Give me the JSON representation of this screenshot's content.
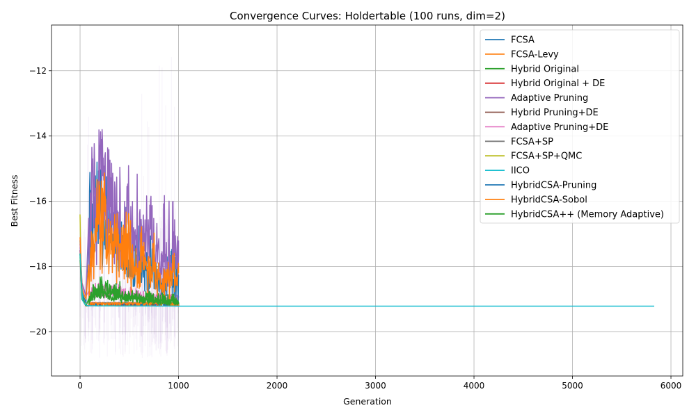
{
  "chart_data": {
    "type": "line",
    "title": "Convergence Curves: Holdertable (100 runs, dim=2)",
    "xlabel": "Generation",
    "ylabel": "Best Fitness",
    "xlim": [
      -290,
      6120
    ],
    "ylim": [
      -21.35,
      -10.6
    ],
    "xticks": [
      0,
      1000,
      2000,
      3000,
      4000,
      5000,
      6000
    ],
    "yticks": [
      -20,
      -18,
      -16,
      -14,
      -12
    ],
    "grid": true,
    "legend_position": "top-right",
    "series": [
      {
        "name": "FCSA",
        "color": "#1f77b4",
        "x": [
          0,
          20,
          60,
          100,
          150,
          200,
          250,
          300,
          400,
          500,
          600,
          700,
          800,
          900,
          1000
        ],
        "y": [
          -17.2,
          -18.8,
          -19.1,
          -16.0,
          -15.2,
          -16.0,
          -15.5,
          -16.5,
          -16.8,
          -17.2,
          -17.6,
          -17.8,
          -18.0,
          -18.2,
          -18.3
        ]
      },
      {
        "name": "FCSA-Levy",
        "color": "#ff7f0e",
        "x": [
          0,
          20,
          60,
          100,
          150,
          200,
          250,
          300,
          400,
          500,
          600,
          700,
          800,
          900,
          1000
        ],
        "y": [
          -17.1,
          -18.7,
          -19.0,
          -17.5,
          -16.5,
          -16.2,
          -15.8,
          -16.4,
          -17.0,
          -17.3,
          -17.6,
          -17.8,
          -18.0,
          -18.1,
          -18.2
        ]
      },
      {
        "name": "Hybrid Original",
        "color": "#2ca02c",
        "x": [
          0,
          20,
          60,
          100,
          200,
          300,
          500,
          700,
          1000
        ],
        "y": [
          -17.6,
          -18.9,
          -19.2,
          -18.9,
          -18.6,
          -18.8,
          -18.9,
          -19.0,
          -19.1
        ]
      },
      {
        "name": "Hybrid Original + DE",
        "color": "#d62728",
        "x": [
          0,
          20,
          60,
          100,
          300,
          600,
          1000
        ],
        "y": [
          -17.5,
          -18.9,
          -19.2,
          -19.2,
          -19.2,
          -19.2,
          -19.2
        ]
      },
      {
        "name": "Adaptive Pruning",
        "color": "#9467bd",
        "x": [
          0,
          20,
          60,
          100,
          150,
          200,
          250,
          300,
          400,
          500,
          600,
          700,
          800,
          900,
          1000
        ],
        "y": [
          -17.3,
          -18.5,
          -18.9,
          -15.5,
          -15.0,
          -14.8,
          -15.2,
          -15.4,
          -15.6,
          -15.9,
          -16.2,
          -16.5,
          -16.8,
          -17.0,
          -17.2
        ]
      },
      {
        "name": "Hybrid Pruning+DE",
        "color": "#8c564b",
        "x": [
          0,
          20,
          60,
          100,
          300,
          600,
          1000
        ],
        "y": [
          -17.5,
          -18.9,
          -19.2,
          -19.2,
          -19.2,
          -19.2,
          -19.2
        ]
      },
      {
        "name": "Adaptive Pruning+DE",
        "color": "#e377c2",
        "x": [
          0,
          20,
          60,
          100,
          200,
          400,
          600,
          800,
          1000
        ],
        "y": [
          -17.4,
          -18.6,
          -18.9,
          -18.7,
          -18.6,
          -18.7,
          -18.8,
          -18.9,
          -18.9
        ]
      },
      {
        "name": "FCSA+SP",
        "color": "#7f7f7f",
        "x": [
          0,
          20,
          60,
          100,
          300,
          600,
          1000
        ],
        "y": [
          -17.8,
          -19.0,
          -19.2,
          -19.2,
          -19.2,
          -19.2,
          -19.2
        ]
      },
      {
        "name": "FCSA+SP+QMC",
        "color": "#bcbd22",
        "x": [
          0,
          10,
          30,
          60,
          100,
          300,
          600,
          1000
        ],
        "y": [
          -16.4,
          -18.2,
          -19.0,
          -19.2,
          -19.2,
          -19.2,
          -19.2,
          -19.2
        ]
      },
      {
        "name": "IICO",
        "color": "#17becf",
        "x": [
          0,
          20,
          60,
          1000,
          2000,
          3000,
          4000,
          5000,
          5830
        ],
        "y": [
          -17.6,
          -19.0,
          -19.2,
          -19.21,
          -19.21,
          -19.21,
          -19.21,
          -19.21,
          -19.21
        ]
      },
      {
        "name": "HybridCSA-Pruning",
        "color": "#1f77b4",
        "x": [
          0,
          20,
          60,
          100,
          300,
          600,
          1000
        ],
        "y": [
          -17.6,
          -19.0,
          -19.2,
          -19.2,
          -19.2,
          -19.2,
          -19.2
        ]
      },
      {
        "name": "HybridCSA-Sobol",
        "color": "#ff7f0e",
        "x": [
          0,
          20,
          60,
          100,
          300,
          600,
          1000
        ],
        "y": [
          -17.6,
          -19.0,
          -19.2,
          -19.2,
          -19.2,
          -19.2,
          -19.2
        ]
      },
      {
        "name": "HybridCSA++ (Memory Adaptive)",
        "color": "#2ca02c",
        "x": [
          0,
          20,
          60,
          100,
          200,
          300,
          500,
          700,
          1000
        ],
        "y": [
          -17.7,
          -19.0,
          -19.2,
          -18.9,
          -18.5,
          -18.6,
          -18.8,
          -19.0,
          -19.1
        ]
      }
    ]
  }
}
